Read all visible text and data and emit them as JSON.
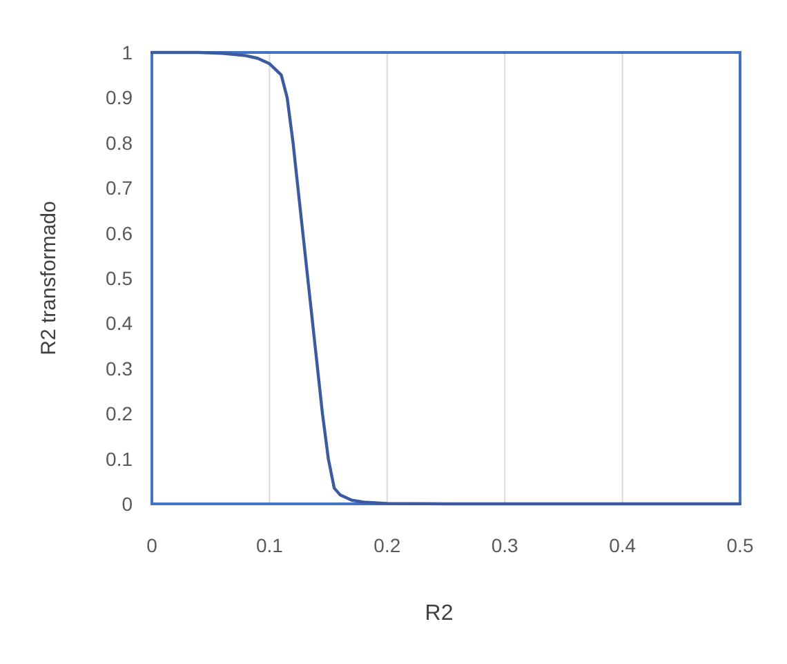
{
  "chart_data": {
    "type": "line",
    "xlabel": "R2",
    "ylabel": "R2 transformado",
    "xlim": [
      0,
      0.5
    ],
    "xticks": [
      0,
      0.1,
      0.2,
      0.3,
      0.4,
      0.5
    ],
    "ylim": [
      0,
      1
    ],
    "yticks": [
      0,
      0.1,
      0.2,
      0.3,
      0.4,
      0.5,
      0.6,
      0.7,
      0.8,
      0.9,
      1
    ],
    "grid": "x",
    "marker": "none",
    "line_style": "solid",
    "series": [
      {
        "color": "#3a5ba0",
        "x": [
          0,
          0.02,
          0.04,
          0.06,
          0.08,
          0.09,
          0.1,
          0.11,
          0.115,
          0.12,
          0.125,
          0.13,
          0.135,
          0.14,
          0.145,
          0.15,
          0.155,
          0.16,
          0.17,
          0.18,
          0.2,
          0.25,
          0.3,
          0.4,
          0.5
        ],
        "values": [
          1,
          1,
          1,
          0.998,
          0.993,
          0.987,
          0.975,
          0.95,
          0.9,
          0.8,
          0.68,
          0.56,
          0.44,
          0.32,
          0.2,
          0.1,
          0.035,
          0.02,
          0.008,
          0.004,
          0.001,
          0,
          0,
          0,
          0
        ]
      }
    ]
  }
}
